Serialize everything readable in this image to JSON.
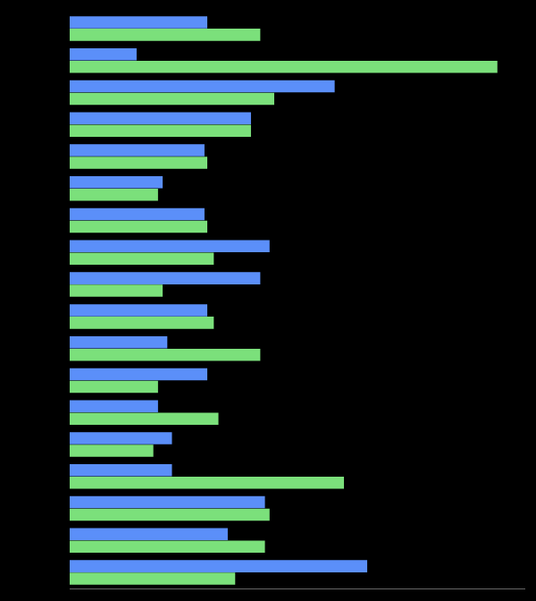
{
  "chart_data": {
    "type": "bar",
    "orientation": "horizontal",
    "categories": [
      null,
      null,
      null,
      null,
      null,
      null,
      null,
      null,
      null,
      null,
      null,
      null,
      null,
      null,
      null,
      null,
      null,
      null
    ],
    "series": [
      {
        "color": "#5b8ff9",
        "values": [
          148,
          72,
          285,
          195,
          145,
          100,
          145,
          215,
          205,
          148,
          105,
          148,
          95,
          110,
          110,
          210,
          170,
          320
        ]
      },
      {
        "color": "#7be07b",
        "values": [
          205,
          460,
          220,
          195,
          148,
          95,
          148,
          155,
          100,
          155,
          205,
          95,
          160,
          90,
          295,
          215,
          210,
          178
        ]
      }
    ],
    "xlim": [
      0,
      490
    ],
    "grid": false,
    "tick_labels": false
  }
}
